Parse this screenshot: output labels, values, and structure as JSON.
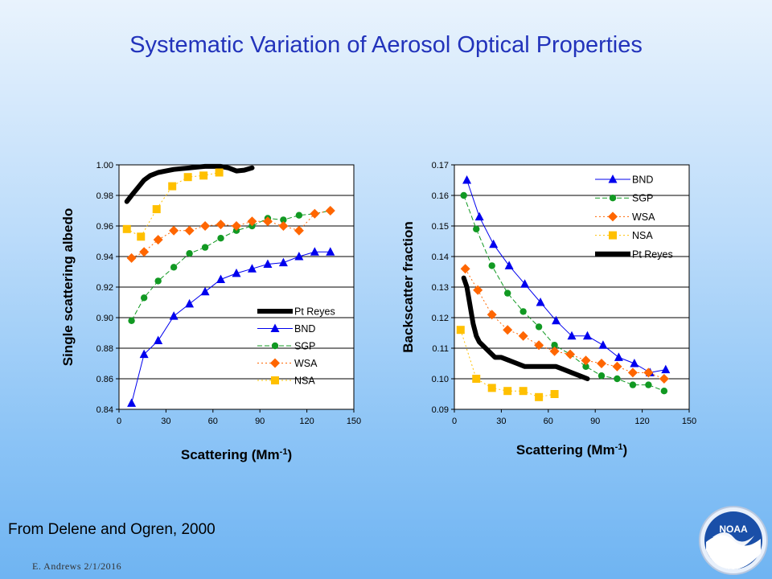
{
  "slide": {
    "title": "Systematic Variation of Aerosol Optical Properties",
    "citation": "From Delene and Ogren, 2000",
    "footer": "E. Andrews   2/1/2016",
    "logo_text": "NOAA"
  },
  "colors": {
    "BND": "#0000ee",
    "SGP": "#119922",
    "WSA": "#ff6600",
    "NSA": "#ffc000",
    "Pt Reyes": "#000000"
  },
  "chart_data": [
    {
      "type": "line",
      "title": "",
      "xlabel": "Scattering (Mm",
      "xlabel_sup": "-1",
      "xlabel_end": ")",
      "ylabel": "Single scattering albedo",
      "xlim": [
        0,
        150
      ],
      "ylim": [
        0.84,
        1.0
      ],
      "xticks": [
        "0",
        "30",
        "60",
        "90",
        "120",
        "150"
      ],
      "yticks": [
        "0.84",
        "0.86",
        "0.88",
        "0.90",
        "0.92",
        "0.94",
        "0.96",
        "0.98",
        "1.00"
      ],
      "grid": "horizontal",
      "legend_placement": "lower-right",
      "legend": [
        "Pt Reyes",
        "BND",
        "SGP",
        "WSA",
        "NSA"
      ],
      "series": [
        {
          "name": "Pt Reyes",
          "marker": "none",
          "x": [
            5,
            8,
            12,
            16,
            20,
            25,
            30,
            35,
            40,
            45,
            50,
            55,
            60,
            65,
            70,
            75,
            80,
            85
          ],
          "y": [
            0.976,
            0.98,
            0.985,
            0.99,
            0.993,
            0.995,
            0.996,
            0.997,
            0.9975,
            0.998,
            0.9985,
            0.999,
            0.999,
            0.999,
            0.998,
            0.996,
            0.9965,
            0.998
          ]
        },
        {
          "name": "BND",
          "marker": "triangle",
          "x": [
            8,
            16,
            25,
            35,
            45,
            55,
            65,
            75,
            85,
            95,
            105,
            115,
            125,
            135
          ],
          "y": [
            0.844,
            0.876,
            0.885,
            0.901,
            0.909,
            0.917,
            0.925,
            0.929,
            0.932,
            0.935,
            0.936,
            0.94,
            0.943,
            0.943
          ]
        },
        {
          "name": "SGP",
          "marker": "circle",
          "x": [
            8,
            16,
            25,
            35,
            45,
            55,
            65,
            75,
            85,
            95,
            105,
            115,
            125,
            135
          ],
          "y": [
            0.898,
            0.913,
            0.924,
            0.933,
            0.942,
            0.946,
            0.952,
            0.957,
            0.96,
            0.965,
            0.964,
            0.967,
            0.968,
            0.97
          ]
        },
        {
          "name": "WSA",
          "marker": "diamond",
          "x": [
            8,
            16,
            25,
            35,
            45,
            55,
            65,
            75,
            85,
            95,
            105,
            115,
            125,
            135
          ],
          "y": [
            0.939,
            0.943,
            0.951,
            0.957,
            0.957,
            0.96,
            0.961,
            0.96,
            0.963,
            0.963,
            0.96,
            0.957,
            0.968,
            0.97
          ]
        },
        {
          "name": "NSA",
          "marker": "square",
          "x": [
            5,
            14,
            24,
            34,
            44,
            54,
            64
          ],
          "y": [
            0.958,
            0.953,
            0.971,
            0.986,
            0.992,
            0.993,
            0.995
          ]
        }
      ]
    },
    {
      "type": "line",
      "title": "",
      "xlabel": "Scattering (Mm",
      "xlabel_sup": "-1",
      "xlabel_end": ")",
      "ylabel": "Backscatter fraction",
      "xlim": [
        0,
        150
      ],
      "ylim": [
        0.09,
        0.17
      ],
      "xticks": [
        "0",
        "30",
        "60",
        "90",
        "120",
        "150"
      ],
      "yticks": [
        "0.09",
        "0.10",
        "0.11",
        "0.12",
        "0.13",
        "0.14",
        "0.15",
        "0.16",
        "0.17"
      ],
      "grid": "horizontal",
      "legend_placement": "top-right",
      "legend": [
        "BND",
        "SGP",
        "WSA",
        "NSA",
        "Pt Reyes"
      ],
      "series": [
        {
          "name": "BND",
          "marker": "triangle",
          "x": [
            8,
            16,
            25,
            35,
            45,
            55,
            65,
            75,
            85,
            95,
            105,
            115,
            125,
            135
          ],
          "y": [
            0.165,
            0.153,
            0.144,
            0.137,
            0.131,
            0.125,
            0.119,
            0.114,
            0.114,
            0.111,
            0.107,
            0.105,
            0.102,
            0.103
          ]
        },
        {
          "name": "SGP",
          "marker": "circle",
          "x": [
            6,
            14,
            24,
            34,
            44,
            54,
            64,
            74,
            84,
            94,
            104,
            114,
            124,
            134
          ],
          "y": [
            0.16,
            0.149,
            0.137,
            0.128,
            0.122,
            0.117,
            0.111,
            0.108,
            0.104,
            0.101,
            0.1,
            0.098,
            0.098,
            0.096
          ]
        },
        {
          "name": "WSA",
          "marker": "diamond",
          "x": [
            7,
            15,
            24,
            34,
            44,
            54,
            64,
            74,
            84,
            94,
            104,
            114,
            124,
            134
          ],
          "y": [
            0.136,
            0.129,
            0.121,
            0.116,
            0.114,
            0.111,
            0.109,
            0.108,
            0.106,
            0.105,
            0.104,
            0.102,
            0.102,
            0.1
          ]
        },
        {
          "name": "NSA",
          "marker": "square",
          "x": [
            4,
            14,
            24,
            34,
            44,
            54,
            64
          ],
          "y": [
            0.116,
            0.1,
            0.097,
            0.096,
            0.096,
            0.094,
            0.095
          ]
        },
        {
          "name": "Pt Reyes",
          "marker": "none",
          "x": [
            6,
            8,
            10,
            12,
            14,
            16,
            18,
            20,
            22,
            24,
            26,
            28,
            30,
            35,
            40,
            45,
            50,
            55,
            60,
            65,
            70,
            75,
            80,
            85
          ],
          "y": [
            0.133,
            0.13,
            0.124,
            0.118,
            0.114,
            0.112,
            0.111,
            0.11,
            0.109,
            0.108,
            0.107,
            0.107,
            0.107,
            0.106,
            0.105,
            0.104,
            0.104,
            0.104,
            0.104,
            0.104,
            0.103,
            0.102,
            0.101,
            0.1
          ]
        }
      ]
    }
  ]
}
